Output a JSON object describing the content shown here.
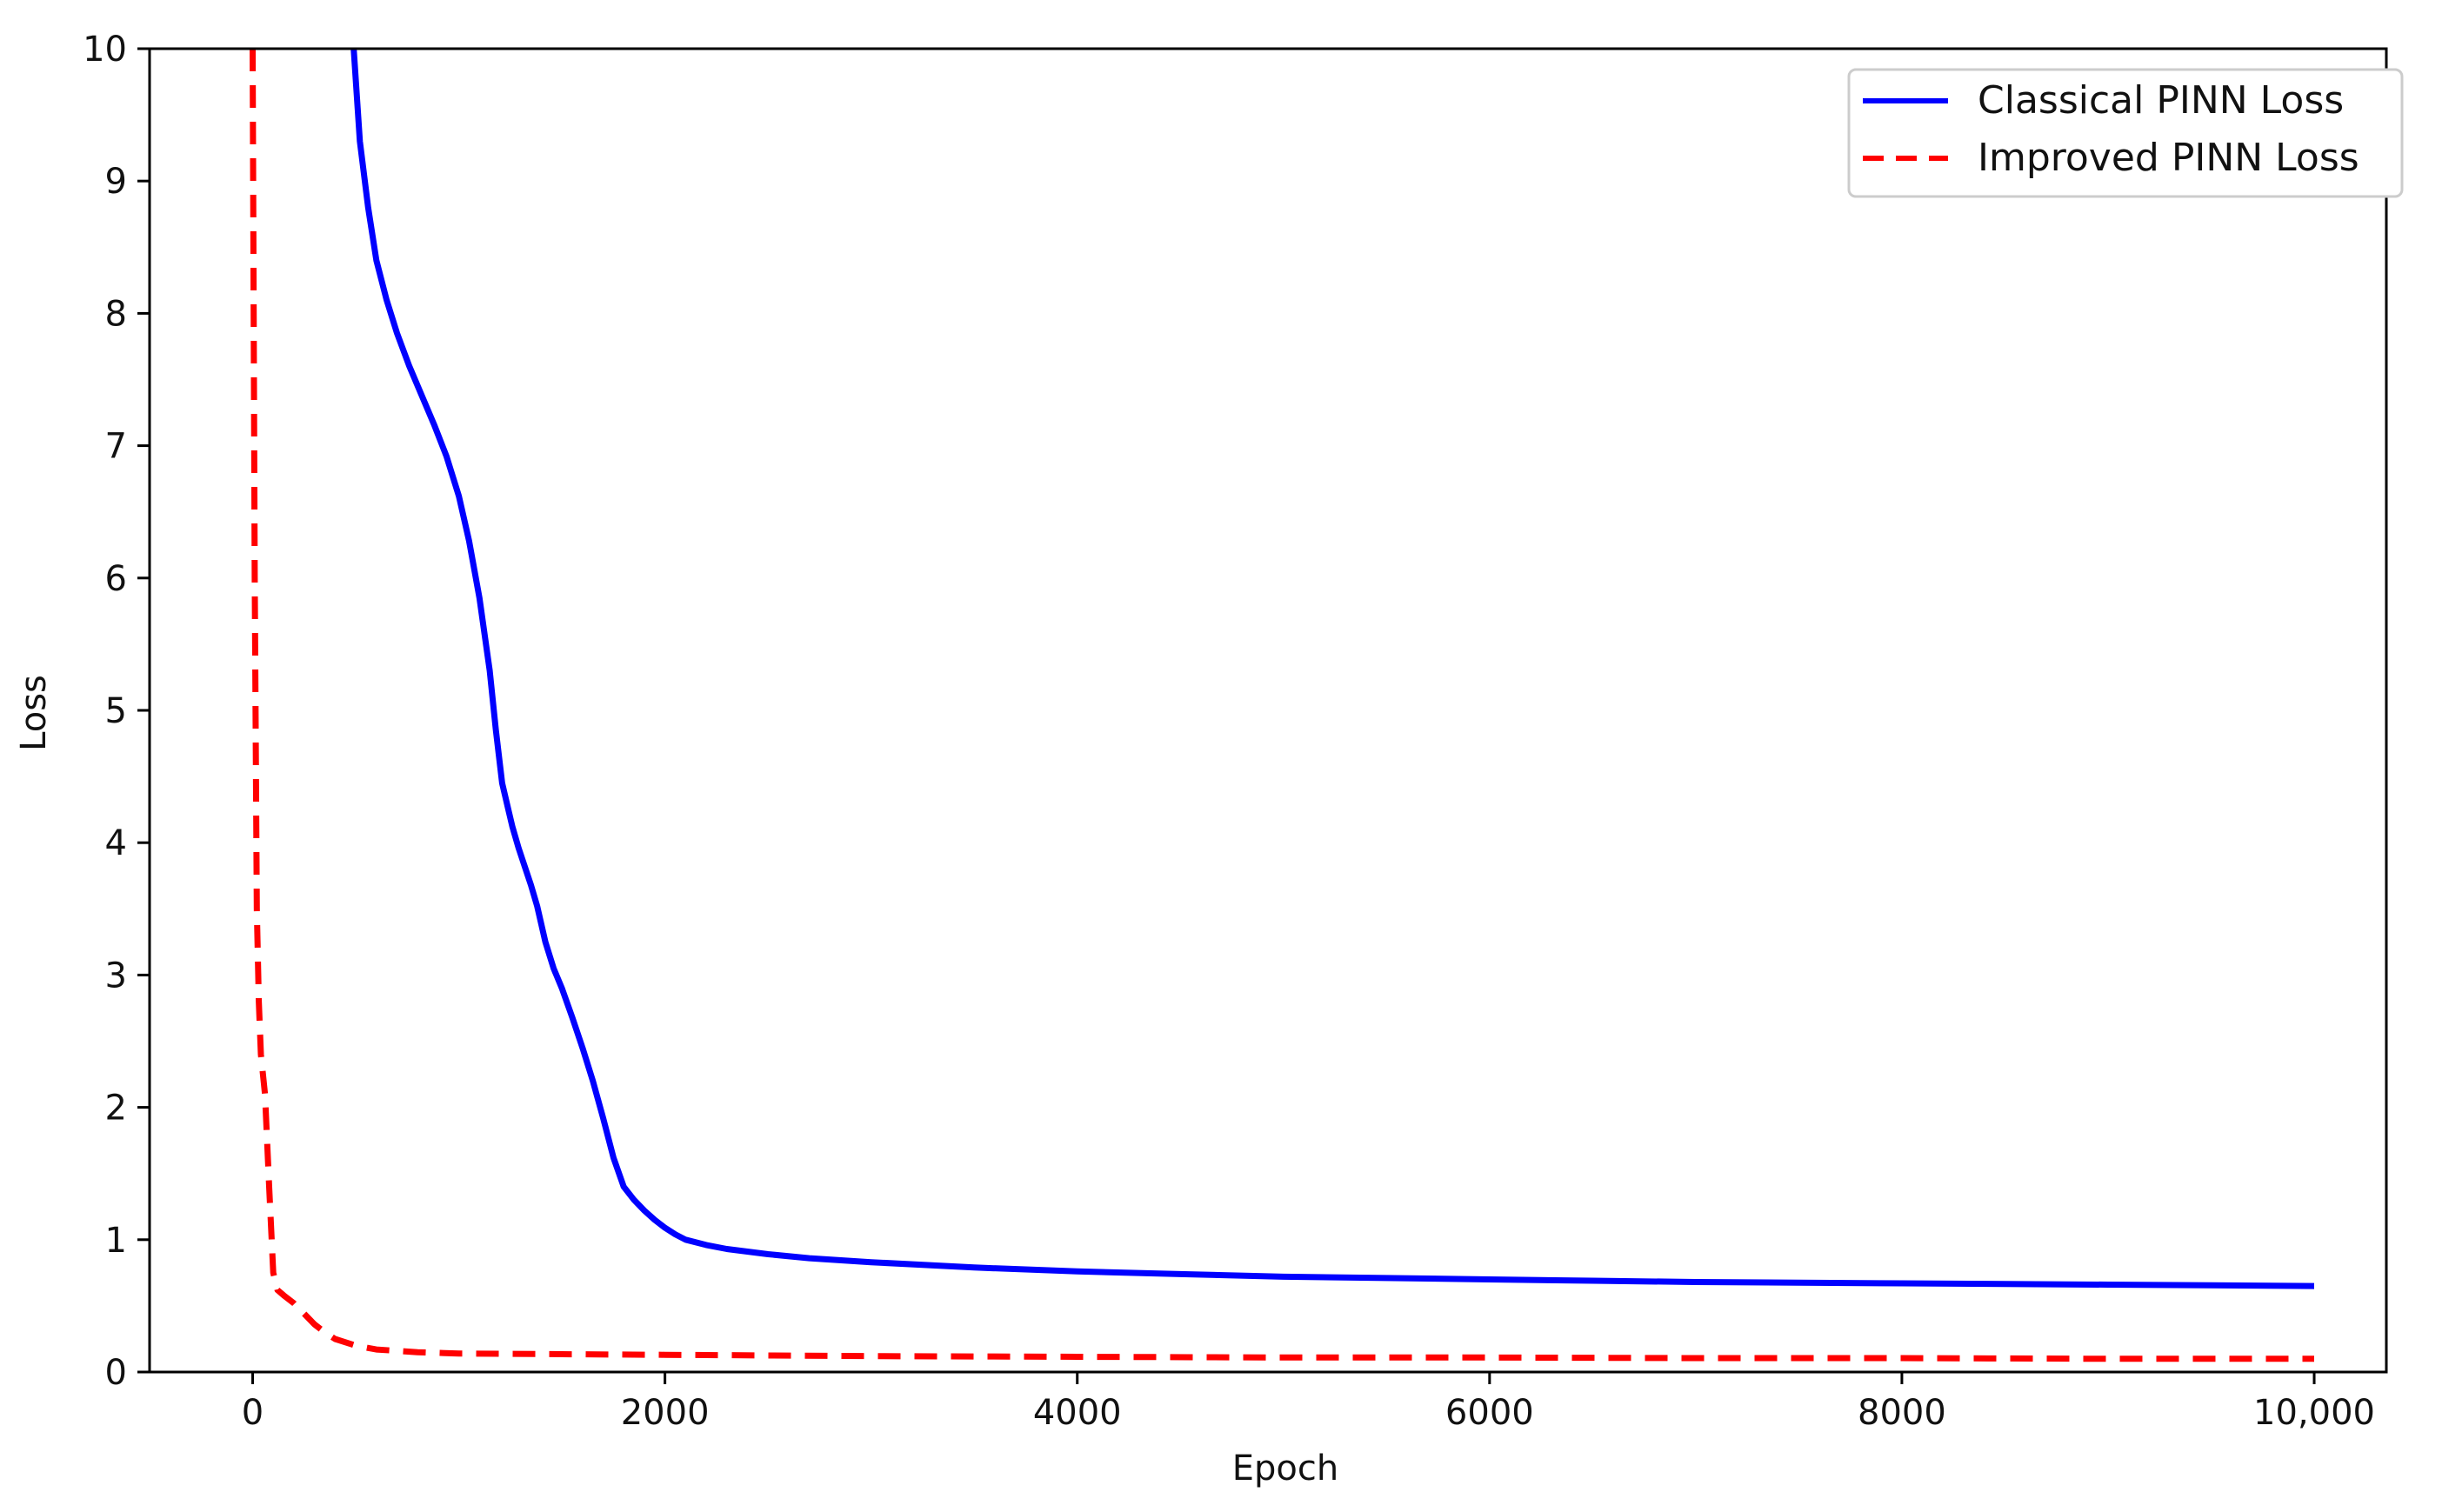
{
  "chart_data": {
    "type": "line",
    "title": "",
    "xlabel": "Epoch",
    "ylabel": "Loss",
    "xlim": [
      -500,
      10350
    ],
    "ylim": [
      0,
      10
    ],
    "x_ticks": [
      {
        "value": 0,
        "label": "0"
      },
      {
        "value": 2000,
        "label": "2000"
      },
      {
        "value": 4000,
        "label": "4000"
      },
      {
        "value": 6000,
        "label": "6000"
      },
      {
        "value": 8000,
        "label": "8000"
      },
      {
        "value": 10000,
        "label": "10,000"
      }
    ],
    "y_ticks": [
      {
        "value": 0,
        "label": "0"
      },
      {
        "value": 1,
        "label": "1"
      },
      {
        "value": 2,
        "label": "2"
      },
      {
        "value": 3,
        "label": "3"
      },
      {
        "value": 4,
        "label": "4"
      },
      {
        "value": 5,
        "label": "5"
      },
      {
        "value": 6,
        "label": "6"
      },
      {
        "value": 7,
        "label": "7"
      },
      {
        "value": 8,
        "label": "8"
      },
      {
        "value": 9,
        "label": "9"
      },
      {
        "value": 10,
        "label": "10"
      }
    ],
    "grid": false,
    "legend_position": "top-right",
    "series": [
      {
        "name": "Classical PINN Loss",
        "color": "#0000ff",
        "style": "solid",
        "x": [
          490,
          520,
          560,
          600,
          650,
          700,
          760,
          820,
          880,
          940,
          1000,
          1050,
          1100,
          1150,
          1180,
          1210,
          1240,
          1260,
          1290,
          1320,
          1350,
          1380,
          1420,
          1460,
          1500,
          1550,
          1600,
          1650,
          1700,
          1750,
          1800,
          1850,
          1900,
          1950,
          2000,
          2050,
          2100,
          2200,
          2300,
          2400,
          2500,
          2700,
          3000,
          3500,
          4000,
          4500,
          5000,
          5500,
          6000,
          6500,
          7000,
          7500,
          8000,
          8500,
          9000,
          9500,
          10000
        ],
        "y": [
          10,
          9.3,
          8.8,
          8.4,
          8.1,
          7.85,
          7.6,
          7.38,
          7.16,
          6.92,
          6.62,
          6.28,
          5.85,
          5.3,
          4.85,
          4.45,
          4.25,
          4.12,
          3.96,
          3.82,
          3.68,
          3.52,
          3.25,
          3.05,
          2.9,
          2.68,
          2.45,
          2.2,
          1.92,
          1.62,
          1.4,
          1.3,
          1.22,
          1.15,
          1.09,
          1.04,
          1.0,
          0.96,
          0.93,
          0.91,
          0.89,
          0.86,
          0.83,
          0.79,
          0.76,
          0.74,
          0.72,
          0.71,
          0.7,
          0.69,
          0.68,
          0.675,
          0.67,
          0.665,
          0.66,
          0.655,
          0.65
        ]
      },
      {
        "name": "Improved PINN Loss",
        "color": "#ff0000",
        "style": "dashed",
        "x": [
          0,
          10,
          20,
          30,
          40,
          60,
          80,
          100,
          120,
          150,
          200,
          250,
          300,
          350,
          400,
          500,
          600,
          800,
          1000,
          1500,
          2000,
          3000,
          4000,
          5000,
          6000,
          7000,
          8000,
          9000,
          10000
        ],
        "y": [
          10,
          6,
          3.5,
          2.8,
          2.4,
          2.1,
          1.4,
          0.75,
          0.62,
          0.58,
          0.52,
          0.44,
          0.36,
          0.3,
          0.25,
          0.2,
          0.17,
          0.15,
          0.14,
          0.135,
          0.13,
          0.12,
          0.115,
          0.11,
          0.11,
          0.105,
          0.105,
          0.1,
          0.1
        ]
      }
    ]
  }
}
